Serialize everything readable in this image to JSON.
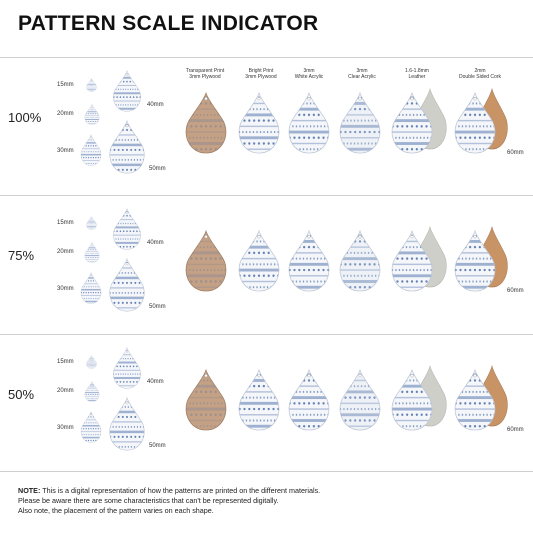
{
  "title": "PATTERN SCALE INDICATOR",
  "materials": [
    "Transparent Print\n3mm Plywood",
    "Bright Print\n3mm Plywood",
    "3mm\nWhite Acrylic",
    "3mm\nClear Acrylic",
    "1.6-1.8mm\nLeather",
    "2mm\nDouble Sided Cork"
  ],
  "sizes": {
    "s15": "15mm",
    "s20": "20mm",
    "s30": "30mm",
    "s40": "40mm",
    "s50": "50mm",
    "s60": "60mm"
  },
  "rows": [
    {
      "scale": "100%"
    },
    {
      "scale": "75%"
    },
    {
      "scale": "50%"
    }
  ],
  "note": {
    "label": "NOTE:",
    "line1": " This is a digital representation of how the patterns are printed on the different materials.",
    "line2": "Please be aware there are some characteristics that can't be represented digitally.",
    "line3": "Also note, the placement of the pattern varies on each shape."
  },
  "colors": {
    "plywood": "#c4a184",
    "pattern_blue": "#4d6ea8",
    "pattern_light": "#dfe6f1",
    "leather_back": "#cfcfc9",
    "cork": "#c89466"
  }
}
